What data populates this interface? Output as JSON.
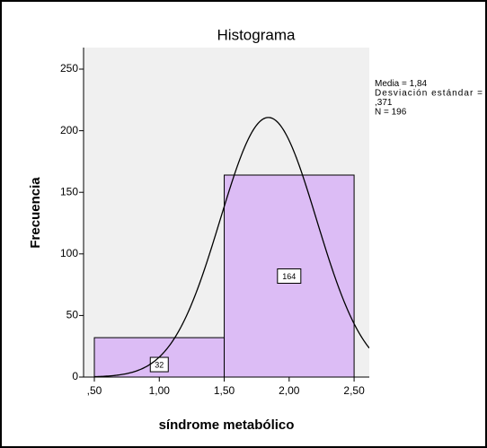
{
  "chart_data": {
    "type": "histogram",
    "title": "Histograma",
    "x_label": "síndrome metabólico",
    "y_label": "Frecuencia",
    "bins": [
      0.5,
      1.5,
      2.5
    ],
    "values": [
      32,
      164
    ],
    "color": "#dcbcf5",
    "xlim": [
      0.417,
      2.617
    ],
    "ylim": [
      0,
      267.5
    ],
    "xticks": [
      {
        "value": 0.5,
        "label": ",50"
      },
      {
        "value": 1.0,
        "label": "1,00"
      },
      {
        "value": 1.5,
        "label": "1,50"
      },
      {
        "value": 2.0,
        "label": "2,00"
      },
      {
        "value": 2.5,
        "label": "2,50"
      }
    ],
    "yticks": [
      0,
      50,
      100,
      150,
      200,
      250
    ],
    "annotation_lines": [
      "Media = 1,84",
      "Desviación estándar =",
      ",371",
      "N = 196"
    ],
    "normal_curve": {
      "mean": 1.84,
      "sd": 0.371,
      "n": 196
    }
  }
}
